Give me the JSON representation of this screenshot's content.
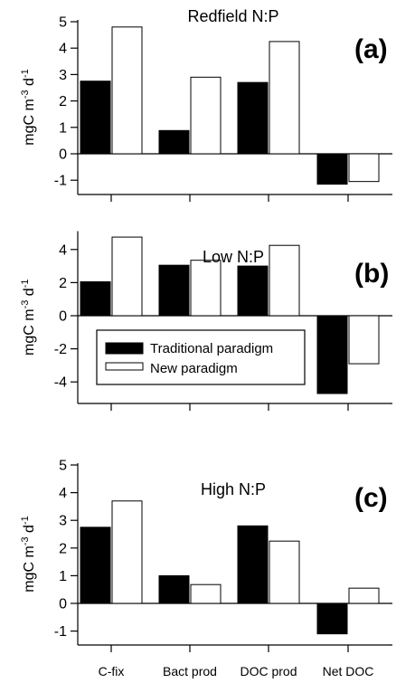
{
  "chart_data": [
    {
      "type": "bar",
      "title": "Redfield N:P",
      "panel_label": "(a)",
      "ylabel": "mgC m-3 d-1",
      "ylim": [
        -1.3,
        5
      ],
      "yticks": [
        -1,
        0,
        1,
        2,
        3,
        4,
        5
      ],
      "categories": [
        "C-fix",
        "Bact prod",
        "DOC prod",
        "Net DOC"
      ],
      "series": [
        {
          "name": "Traditional paradigm",
          "color": "#000000",
          "values": [
            2.75,
            0.88,
            2.7,
            -1.15
          ]
        },
        {
          "name": "New paradigm",
          "color": "#ffffff",
          "values": [
            4.8,
            2.9,
            4.25,
            -1.05
          ]
        }
      ]
    },
    {
      "type": "bar",
      "title": "Low N:P",
      "panel_label": "(b)",
      "ylabel": "mgC m-3 d-1",
      "ylim": [
        -5,
        5
      ],
      "yticks": [
        -4,
        -2,
        0,
        2,
        4
      ],
      "categories": [
        "C-fix",
        "Bact prod",
        "DOC prod",
        "Net DOC"
      ],
      "legend": {
        "position": "middle-left",
        "entries": [
          "Traditional paradigm",
          "New paradigm"
        ]
      },
      "series": [
        {
          "name": "Traditional paradigm",
          "color": "#000000",
          "values": [
            2.05,
            3.05,
            3.0,
            -4.7
          ]
        },
        {
          "name": "New paradigm",
          "color": "#ffffff",
          "values": [
            4.75,
            3.35,
            4.25,
            -2.9
          ]
        }
      ]
    },
    {
      "type": "bar",
      "title": "High N:P",
      "panel_label": "(c)",
      "ylabel": "mgC m-3 d-1",
      "ylim": [
        -1.5,
        5
      ],
      "yticks": [
        -1,
        0,
        1,
        2,
        3,
        4,
        5
      ],
      "categories": [
        "C-fix",
        "Bact prod",
        "DOC prod",
        "Net DOC"
      ],
      "series": [
        {
          "name": "Traditional paradigm",
          "color": "#000000",
          "values": [
            2.75,
            1.0,
            2.8,
            -1.1
          ]
        },
        {
          "name": "New paradigm",
          "color": "#ffffff",
          "values": [
            3.7,
            0.68,
            2.25,
            0.55
          ]
        }
      ]
    }
  ]
}
